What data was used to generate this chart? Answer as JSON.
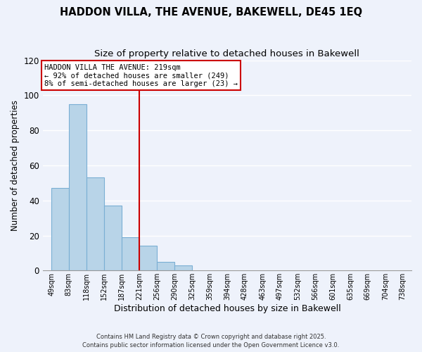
{
  "title": "HADDON VILLA, THE AVENUE, BAKEWELL, DE45 1EQ",
  "subtitle": "Size of property relative to detached houses in Bakewell",
  "xlabel": "Distribution of detached houses by size in Bakewell",
  "ylabel": "Number of detached properties",
  "bar_edges": [
    49,
    83,
    118,
    152,
    187,
    221,
    256,
    290,
    325,
    359,
    394,
    428,
    463,
    497,
    532,
    566,
    601,
    635,
    669,
    704,
    738
  ],
  "bar_heights": [
    47,
    95,
    53,
    37,
    19,
    14,
    5,
    3,
    0,
    0,
    0,
    0,
    0,
    0,
    0,
    0,
    0,
    0,
    0,
    0
  ],
  "bar_color": "#b8d4e8",
  "bar_edge_color": "#7aafd4",
  "reference_line_x": 221,
  "reference_line_color": "#cc0000",
  "ylim": [
    0,
    120
  ],
  "yticks": [
    0,
    20,
    40,
    60,
    80,
    100,
    120
  ],
  "annotation_title": "HADDON VILLA THE AVENUE: 219sqm",
  "annotation_line1": "← 92% of detached houses are smaller (249)",
  "annotation_line2": "8% of semi-detached houses are larger (23) →",
  "footer_line1": "Contains HM Land Registry data © Crown copyright and database right 2025.",
  "footer_line2": "Contains public sector information licensed under the Open Government Licence v3.0.",
  "background_color": "#eef2fb",
  "grid_color": "#ffffff",
  "title_fontsize": 10.5,
  "subtitle_fontsize": 9.5,
  "tick_label_size": 7,
  "ylabel_fontsize": 8.5,
  "xlabel_fontsize": 9
}
